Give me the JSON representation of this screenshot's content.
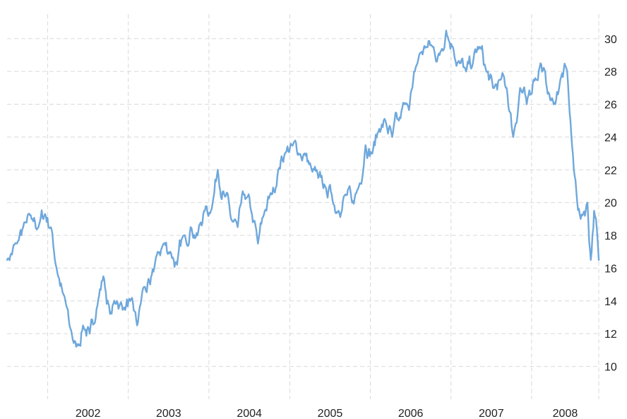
{
  "chart_data": {
    "type": "line",
    "title": "",
    "xlabel": "",
    "ylabel": "",
    "x_ticks": [
      "2002",
      "2003",
      "2004",
      "2005",
      "2006",
      "2007",
      "2008"
    ],
    "y_ticks": [
      "10",
      "12",
      "14",
      "16",
      "18",
      "20",
      "22",
      "24",
      "26",
      "28",
      "30"
    ],
    "ylim": [
      8,
      31.5
    ],
    "xlim": [
      "2001-07-01",
      "2008-10-31"
    ],
    "grid": true,
    "line_color": "#6fa8dc",
    "series": [
      {
        "x": [
          "2001-07-01",
          "2001-08-15",
          "2001-09-20",
          "2001-10-20",
          "2001-11-20",
          "2001-12-20",
          "2002-01-15",
          "2002-02-10",
          "2002-03-10",
          "2002-04-10",
          "2002-05-10",
          "2002-06-10",
          "2002-07-10",
          "2002-08-10",
          "2002-09-10",
          "2002-10-10",
          "2002-11-10",
          "2002-12-10",
          "2003-01-10",
          "2003-02-10",
          "2003-03-10",
          "2003-04-10",
          "2003-05-10",
          "2003-06-10",
          "2003-07-10",
          "2003-08-10",
          "2003-09-10",
          "2003-10-10",
          "2003-11-10",
          "2003-12-10",
          "2004-01-10",
          "2004-02-10",
          "2004-03-10",
          "2004-04-10",
          "2004-05-10",
          "2004-06-10",
          "2004-07-10",
          "2004-08-10",
          "2004-09-10",
          "2004-10-10",
          "2004-11-10",
          "2004-12-10",
          "2005-01-10",
          "2005-02-10",
          "2005-03-10",
          "2005-04-10",
          "2005-05-10",
          "2005-06-10",
          "2005-07-10",
          "2005-08-10",
          "2005-09-10",
          "2005-10-10",
          "2005-11-10",
          "2005-12-10",
          "2006-01-10",
          "2006-02-10",
          "2006-03-10",
          "2006-04-10",
          "2006-05-10",
          "2006-06-10",
          "2006-07-10",
          "2006-08-10",
          "2006-09-10",
          "2006-10-10",
          "2006-11-10",
          "2006-12-10",
          "2007-01-10",
          "2007-02-10",
          "2007-03-10",
          "2007-04-10",
          "2007-05-10",
          "2007-06-10",
          "2007-07-10",
          "2007-08-10",
          "2007-09-10",
          "2007-10-10",
          "2007-11-10",
          "2007-12-10",
          "2008-01-10",
          "2008-02-10",
          "2008-03-10",
          "2008-04-10",
          "2008-05-10",
          "2008-06-10",
          "2008-07-10",
          "2008-08-10",
          "2008-09-10",
          "2008-09-25",
          "2008-10-10",
          "2008-10-31"
        ],
        "values": [
          16.5,
          17.5,
          18.8,
          19.0,
          18.5,
          19.3,
          18.5,
          16.0,
          14.5,
          12.5,
          11.2,
          12.5,
          12.0,
          13.5,
          15.5,
          13.2,
          14.0,
          13.5,
          14.0,
          12.5,
          14.8,
          15.0,
          16.8,
          17.5,
          17.0,
          16.2,
          18.0,
          18.5,
          18.0,
          19.5,
          19.5,
          22.0,
          20.5,
          19.0,
          18.5,
          20.5,
          19.5,
          17.5,
          19.5,
          20.5,
          22.0,
          23.0,
          23.5,
          23.0,
          23.0,
          22.0,
          21.5,
          21.0,
          20.5,
          19.5,
          20.5,
          20.0,
          21.0,
          23.5,
          23.0,
          24.5,
          25.0,
          24.0,
          25.0,
          26.0,
          27.0,
          29.0,
          29.5,
          29.5,
          29.0,
          30.5,
          29.5,
          28.5,
          28.0,
          28.5,
          29.5,
          28.0,
          27.0,
          27.5,
          27.0,
          24.0,
          27.0,
          26.0,
          27.5,
          28.5,
          27.0,
          26.0,
          27.5,
          28.0,
          22.0,
          19.0,
          20.0,
          16.5,
          19.5,
          16.5
        ]
      }
    ]
  }
}
